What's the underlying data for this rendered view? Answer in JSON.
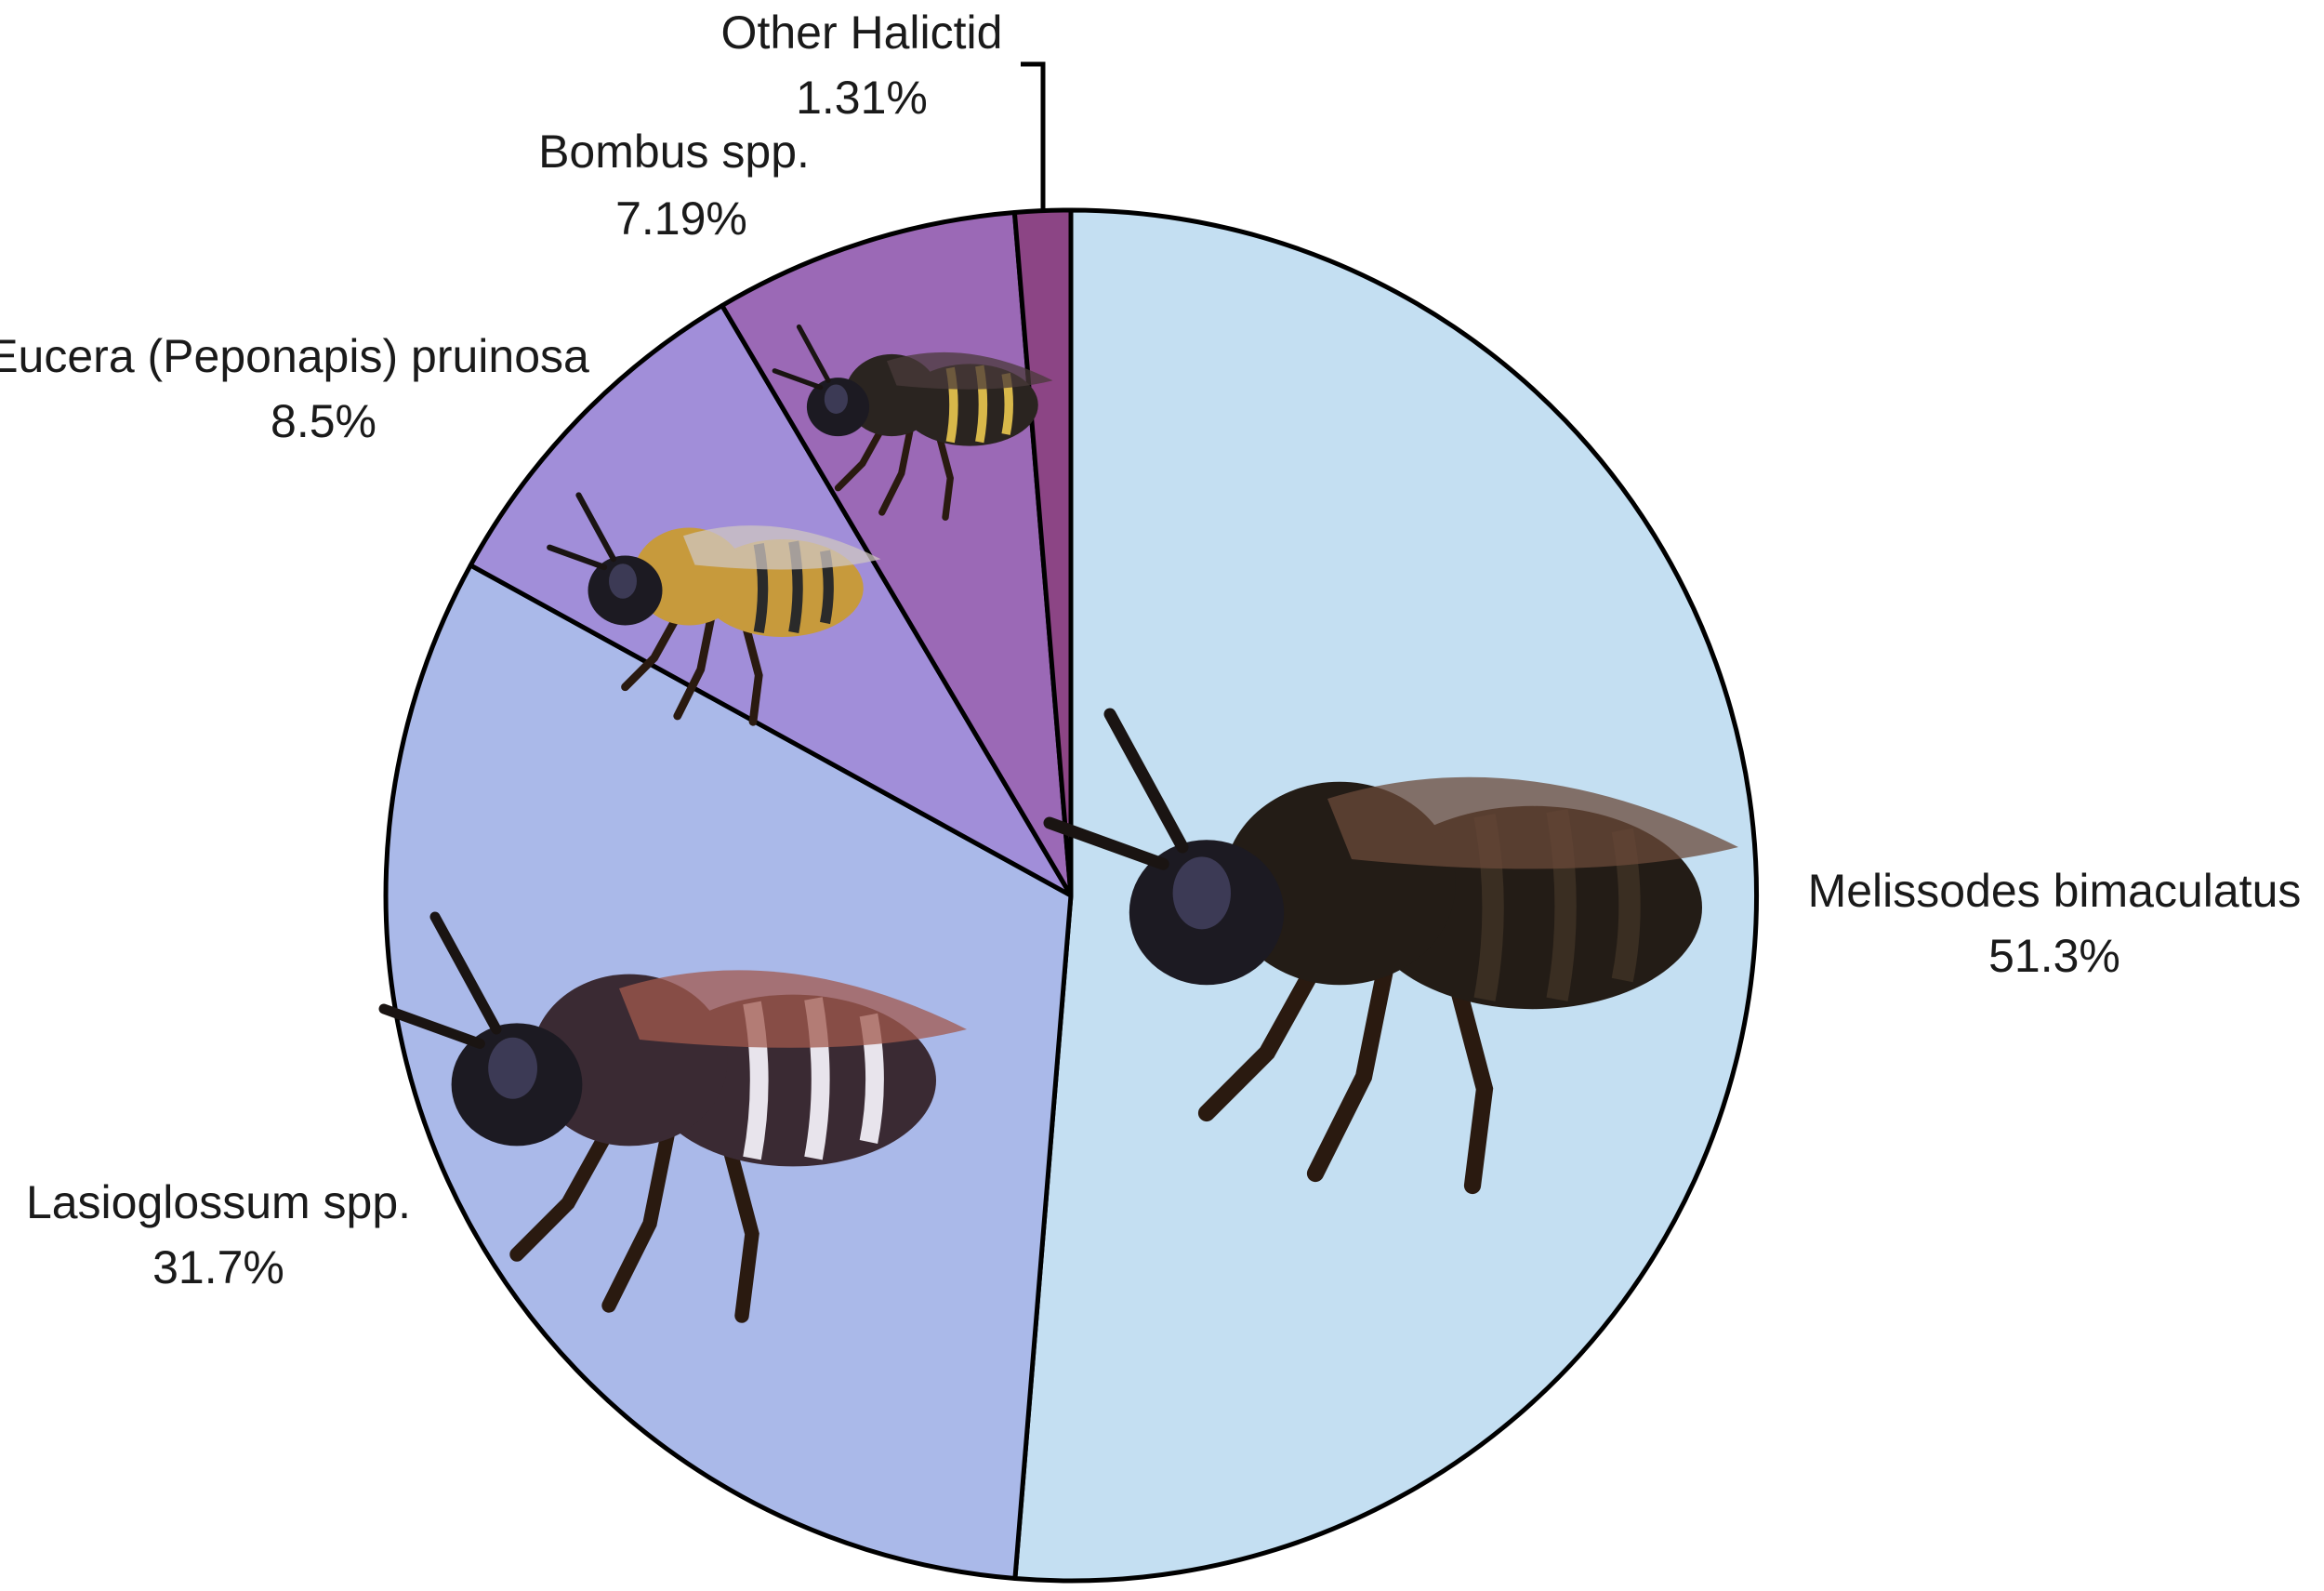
{
  "chart_data": {
    "type": "pie",
    "title": "",
    "slices": [
      {
        "label": "Melissodes bimaculatus",
        "pct_label": "51.3%",
        "value": 51.3,
        "color": "#c4dff2",
        "icon": "melissodes-bee-photo"
      },
      {
        "label": "Lasioglossum spp.",
        "pct_label": "31.7%",
        "value": 31.7,
        "color": "#aab9e9",
        "icon": "lasioglossum-bee-photo"
      },
      {
        "label": "Eucera (Peponapis) pruinosa",
        "pct_label": "8.5%",
        "value": 8.5,
        "color": "#a18ed9",
        "icon": "eucera-bee-photo"
      },
      {
        "label": "Bombus spp.",
        "pct_label": "7.19%",
        "value": 7.19,
        "color": "#9b69b6",
        "icon": "bombus-bee-photo"
      },
      {
        "label": "Other Halictid",
        "pct_label": "1.31%",
        "value": 1.31,
        "color": "#8c4585",
        "icon": ""
      }
    ],
    "start": "top",
    "direction": "clockwise",
    "legend": "none"
  }
}
